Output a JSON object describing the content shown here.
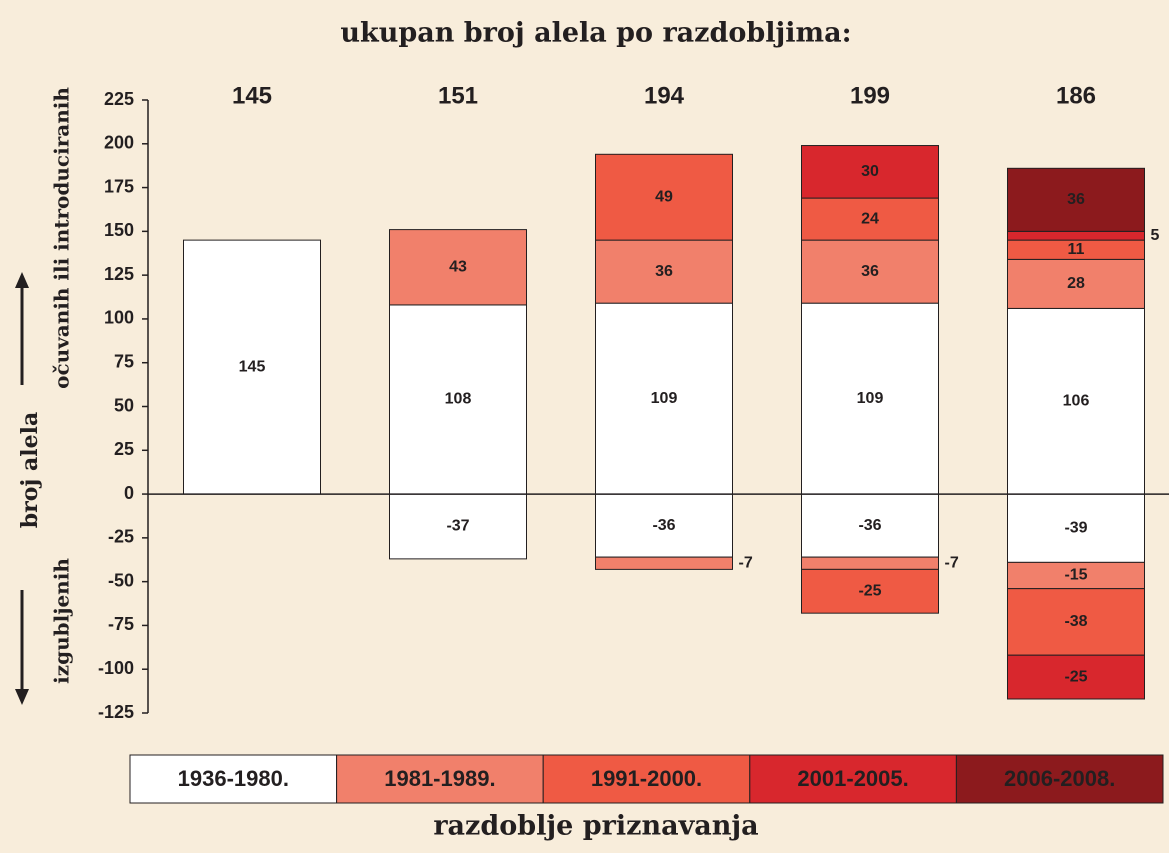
{
  "chart_data": {
    "type": "stacked_bar",
    "title": "ukupan broj alela po razdobljima:",
    "y_label": "broj alela",
    "y_label_up": "očuvanih ili introduciranih",
    "y_label_down": "izgubljenih",
    "x_label": "razdoblje priznavanja",
    "totals": [
      145,
      151,
      194,
      199,
      186
    ],
    "ylim": [
      -125,
      225
    ],
    "yticks": [
      -125,
      -100,
      -75,
      -50,
      -25,
      0,
      25,
      50,
      75,
      100,
      125,
      150,
      175,
      200,
      225
    ],
    "series": [
      {
        "name": "1936-1980.",
        "color": "#ffffff",
        "text_color": "#000000",
        "label_color": "#231f20",
        "values": [
          145,
          108,
          109,
          109,
          106
        ],
        "lost_values": [
          null,
          -37,
          -36,
          -36,
          -39
        ]
      },
      {
        "name": "1981-1989.",
        "color": "#f1806b",
        "text_color": "#231f20",
        "label_color": "#231f20",
        "values": [
          null,
          43,
          36,
          36,
          28
        ],
        "lost_values": [
          null,
          null,
          -7,
          -7,
          -15
        ]
      },
      {
        "name": "1991-2000.",
        "color": "#ef5a44",
        "text_color": "#231f20",
        "label_color": "#231f20",
        "values": [
          null,
          null,
          49,
          24,
          11
        ],
        "lost_values": [
          null,
          null,
          null,
          -25,
          -38
        ]
      },
      {
        "name": "2001-2005.",
        "color": "#d8272d",
        "text_color": "#ffffff",
        "label_color": "#231f20",
        "values": [
          null,
          null,
          null,
          30,
          5
        ],
        "lost_values": [
          null,
          null,
          null,
          null,
          -25
        ]
      },
      {
        "name": "2006-2008.",
        "color": "#8c1a1d",
        "text_color": "#ffffff",
        "label_color": "#ffffff",
        "values": [
          null,
          null,
          null,
          null,
          36
        ],
        "lost_values": [
          null,
          null,
          null,
          null,
          null
        ]
      }
    ]
  }
}
